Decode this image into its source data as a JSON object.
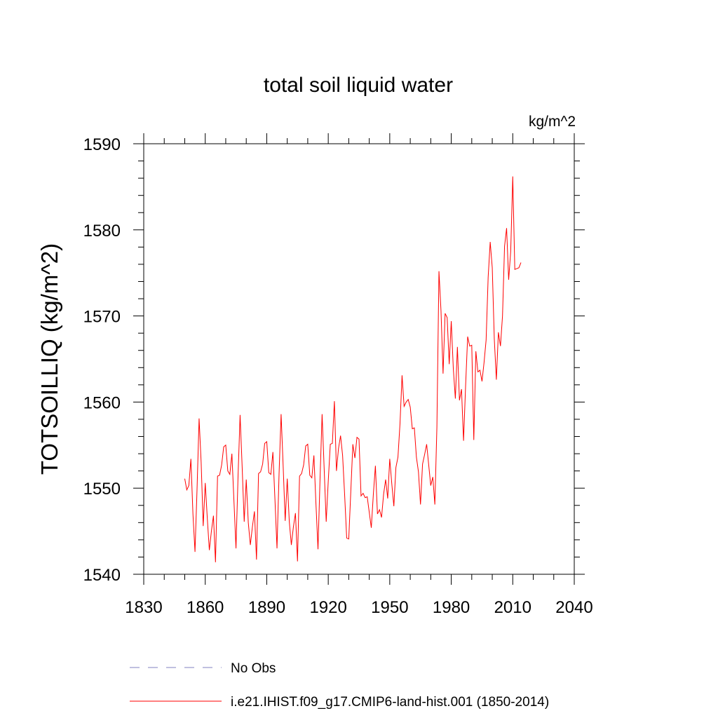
{
  "chart_data": {
    "type": "line",
    "title": "total soil liquid water",
    "units": "kg/m^2",
    "ylabel": "TOTSOILLIQ  (kg/m^2)",
    "xlabel": "",
    "xlim": [
      1830,
      2040
    ],
    "ylim": [
      1540,
      1590
    ],
    "xticks": [
      1830,
      1860,
      1890,
      1920,
      1950,
      1980,
      2010,
      2040
    ],
    "yticks": [
      1540,
      1550,
      1560,
      1570,
      1580,
      1590
    ],
    "x_minor_step": 10,
    "y_minor_step": 2,
    "grid": false,
    "legend_position": "bottom",
    "series": [
      {
        "name": "No Obs",
        "color": "#8080c0",
        "dashed": true,
        "x": [],
        "values": []
      },
      {
        "name": "i.e21.IHIST.f09_g17.CMIP6-land-hist.001 (1850-2014)",
        "color": "#ff0000",
        "dashed": false,
        "x": [
          1850,
          1851,
          1852,
          1853,
          1854,
          1855,
          1856,
          1857,
          1858,
          1859,
          1860,
          1861,
          1862,
          1863,
          1864,
          1865,
          1866,
          1867,
          1868,
          1869,
          1870,
          1871,
          1872,
          1873,
          1874,
          1875,
          1876,
          1877,
          1878,
          1879,
          1880,
          1881,
          1882,
          1883,
          1884,
          1885,
          1886,
          1887,
          1888,
          1889,
          1890,
          1891,
          1892,
          1893,
          1894,
          1895,
          1896,
          1897,
          1898,
          1899,
          1900,
          1901,
          1902,
          1903,
          1904,
          1905,
          1906,
          1907,
          1908,
          1909,
          1910,
          1911,
          1912,
          1913,
          1914,
          1915,
          1916,
          1917,
          1918,
          1919,
          1920,
          1921,
          1922,
          1923,
          1924,
          1925,
          1926,
          1927,
          1928,
          1929,
          1930,
          1931,
          1932,
          1933,
          1934,
          1935,
          1936,
          1937,
          1938,
          1939,
          1940,
          1941,
          1942,
          1943,
          1944,
          1945,
          1946,
          1947,
          1948,
          1949,
          1950,
          1951,
          1952,
          1953,
          1954,
          1955,
          1956,
          1957,
          1958,
          1959,
          1960,
          1961,
          1962,
          1963,
          1964,
          1965,
          1966,
          1967,
          1968,
          1969,
          1970,
          1971,
          1972,
          1973,
          1974,
          1975,
          1976,
          1977,
          1978,
          1979,
          1980,
          1981,
          1982,
          1983,
          1984,
          1985,
          1986,
          1987,
          1988,
          1989,
          1990,
          1991,
          1992,
          1993,
          1994,
          1995,
          1996,
          1997,
          1998,
          1999,
          2000,
          2001,
          2002,
          2003,
          2004,
          2005,
          2006,
          2007,
          2008,
          2009,
          2010,
          2011,
          2012,
          2013,
          2014
        ],
        "values": [
          1551.1,
          1549.8,
          1550.3,
          1553.4,
          1547.0,
          1542.6,
          1549.9,
          1558.1,
          1553.0,
          1545.6,
          1550.6,
          1546.5,
          1542.8,
          1545.0,
          1546.8,
          1541.4,
          1551.4,
          1551.5,
          1552.7,
          1554.8,
          1555.0,
          1552.0,
          1551.6,
          1554.0,
          1548.5,
          1543.0,
          1551.4,
          1558.5,
          1552.5,
          1546.1,
          1551.0,
          1546.0,
          1543.4,
          1545.5,
          1547.3,
          1541.7,
          1551.7,
          1551.9,
          1552.8,
          1555.2,
          1555.4,
          1551.8,
          1551.6,
          1554.2,
          1548.7,
          1543.0,
          1551.6,
          1558.6,
          1552.6,
          1546.2,
          1551.1,
          1546.1,
          1543.4,
          1545.5,
          1547.1,
          1541.5,
          1551.4,
          1551.7,
          1552.7,
          1554.9,
          1555.1,
          1551.5,
          1551.2,
          1553.8,
          1548.2,
          1542.9,
          1551.1,
          1558.6,
          1552.3,
          1546.1,
          1550.8,
          1555.1,
          1555.2,
          1560.1,
          1552.0,
          1554.6,
          1556.1,
          1553.8,
          1549.2,
          1544.2,
          1544.1,
          1549.6,
          1555.1,
          1553.5,
          1555.9,
          1555.7,
          1549.1,
          1549.4,
          1548.9,
          1549.0,
          1547.2,
          1545.4,
          1549.3,
          1552.6,
          1547.0,
          1547.5,
          1546.6,
          1549.3,
          1551.0,
          1548.8,
          1553.4,
          1550.5,
          1547.9,
          1552.4,
          1553.6,
          1557.5,
          1563.1,
          1559.5,
          1560.0,
          1560.3,
          1559.4,
          1556.9,
          1557.0,
          1553.6,
          1551.9,
          1548.1,
          1552.8,
          1553.9,
          1555.1,
          1552.7,
          1550.3,
          1551.3,
          1548.1,
          1557.1,
          1575.2,
          1570.6,
          1563.3,
          1570.3,
          1569.8,
          1564.4,
          1569.4,
          1563.9,
          1560.4,
          1566.4,
          1560.2,
          1561.5,
          1555.5,
          1561.9,
          1567.6,
          1566.5,
          1566.6,
          1555.6,
          1565.9,
          1563.5,
          1563.7,
          1562.4,
          1564.6,
          1567.2,
          1574.5,
          1578.6,
          1575.6,
          1567.3,
          1562.6,
          1568.1,
          1566.5,
          1570.0,
          1578.1,
          1580.2,
          1574.2,
          1577.5,
          1586.2,
          1575.4,
          1575.5,
          1575.6,
          1576.2
        ]
      }
    ]
  }
}
